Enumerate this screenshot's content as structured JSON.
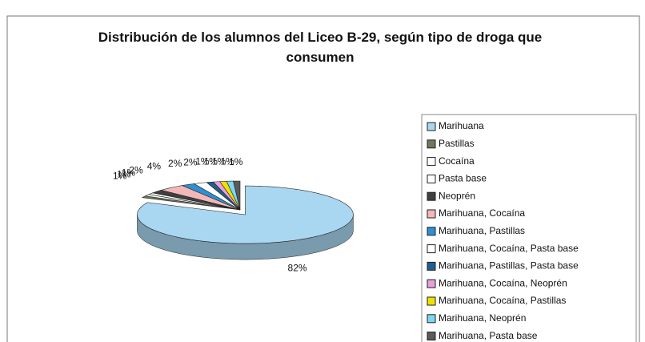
{
  "chart_data": {
    "type": "pie3d",
    "title": "Distribución de los alumnos del Liceo B-29, según tipo de droga que consumen",
    "categories": [
      "Marihuana",
      "Pastillas",
      "Cocaína",
      "Pasta base",
      "Neoprén",
      "Marihuana, Cocaína",
      "Marihuana, Pastillas",
      "Marihuana, Cocaína, Pasta base",
      "Marihuana, Pastillas, Pasta base",
      "Marihuana, Cocaína, Neoprén",
      "Marihuana,  Cocaína, Pastillas",
      "Marihuana,  Neoprén",
      "Marihuana,  Pasta base"
    ],
    "values": [
      82,
      1,
      1,
      1,
      2,
      4,
      2,
      2,
      1,
      1,
      1,
      1,
      1
    ],
    "value_labels": [
      "82%",
      "1%",
      "1%",
      "1%",
      "2%",
      "4%",
      "2%",
      "2%",
      "1%",
      "1%",
      "1%",
      "1%",
      "1%"
    ],
    "colors": [
      "#a9d6f0",
      "#6e7a5e",
      "#ffffff",
      "#ffffff",
      "#3f3f3f",
      "#f2b8b8",
      "#2f8fd3",
      "#ffffff",
      "#1f5f8f",
      "#e8a0d8",
      "#f0e000",
      "#80d6f2",
      "#5a5a5a"
    ],
    "legend": "right"
  }
}
